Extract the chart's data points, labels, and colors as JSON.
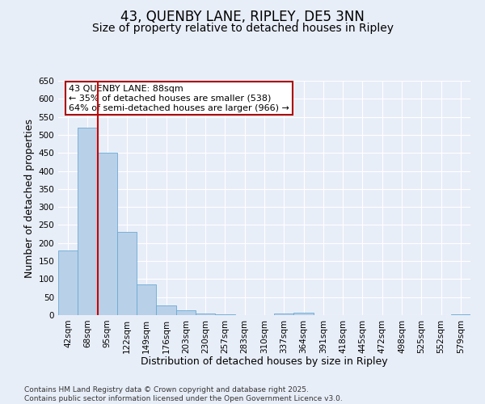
{
  "title": "43, QUENBY LANE, RIPLEY, DE5 3NN",
  "subtitle": "Size of property relative to detached houses in Ripley",
  "xlabel": "Distribution of detached houses by size in Ripley",
  "ylabel": "Number of detached properties",
  "categories": [
    "42sqm",
    "68sqm",
    "95sqm",
    "122sqm",
    "149sqm",
    "176sqm",
    "203sqm",
    "230sqm",
    "257sqm",
    "283sqm",
    "310sqm",
    "337sqm",
    "364sqm",
    "391sqm",
    "418sqm",
    "445sqm",
    "472sqm",
    "498sqm",
    "525sqm",
    "552sqm",
    "579sqm"
  ],
  "values": [
    180,
    520,
    450,
    230,
    85,
    28,
    13,
    5,
    2,
    1,
    1,
    5,
    6,
    0,
    0,
    1,
    0,
    0,
    0,
    0,
    3
  ],
  "bar_color": "#b8d0e8",
  "bar_edge_color": "#6aaad4",
  "ylim": [
    0,
    650
  ],
  "yticks": [
    0,
    50,
    100,
    150,
    200,
    250,
    300,
    350,
    400,
    450,
    500,
    550,
    600,
    650
  ],
  "red_line_x": 1.5,
  "annotation_text": "43 QUENBY LANE: 88sqm\n← 35% of detached houses are smaller (538)\n64% of semi-detached houses are larger (966) →",
  "annotation_box_color": "#ffffff",
  "annotation_box_edge": "#aa0000",
  "title_fontsize": 12,
  "subtitle_fontsize": 10,
  "axis_label_fontsize": 9,
  "tick_fontsize": 7.5,
  "annot_fontsize": 8,
  "footer_text": "Contains HM Land Registry data © Crown copyright and database right 2025.\nContains public sector information licensed under the Open Government Licence v3.0.",
  "footer_fontsize": 6.5,
  "background_color": "#e8eef8",
  "grid_color": "#ffffff",
  "fig_bg_color": "#e8eef8"
}
